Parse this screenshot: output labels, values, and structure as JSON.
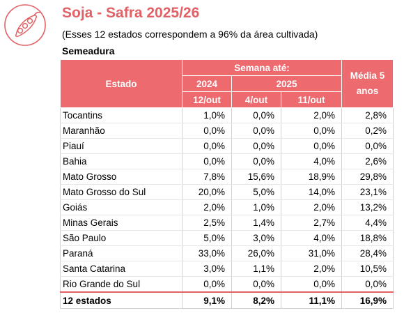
{
  "header": {
    "title": "Soja - Safra 2025/26",
    "subtitle": "(Esses 12 estados correspondem a 96% da área cultivada)",
    "section": "Semeadura",
    "accent_color": "#e06266",
    "logo_icon": "soybean-pod-icon"
  },
  "table": {
    "col_estado": "Estado",
    "col_semana": "Semana até:",
    "year_2024": "2024",
    "year_2025": "2025",
    "week_1": "12/out",
    "week_2": "4/out",
    "week_3": "11/out",
    "col_media_1": "Média 5",
    "col_media_2": "anos",
    "rows": [
      {
        "estado": "Tocantins",
        "v2024": "1,0%",
        "v4out": "0,0%",
        "v11out": "2,0%",
        "media": "2,8%"
      },
      {
        "estado": "Maranhão",
        "v2024": "0,0%",
        "v4out": "0,0%",
        "v11out": "0,0%",
        "media": "0,2%"
      },
      {
        "estado": "Piauí",
        "v2024": "0,0%",
        "v4out": "0,0%",
        "v11out": "0,0%",
        "media": "0,0%"
      },
      {
        "estado": "Bahia",
        "v2024": "0,0%",
        "v4out": "0,0%",
        "v11out": "4,0%",
        "media": "2,6%"
      },
      {
        "estado": "Mato Grosso",
        "v2024": "7,8%",
        "v4out": "15,6%",
        "v11out": "18,9%",
        "media": "29,8%"
      },
      {
        "estado": "Mato Grosso do Sul",
        "v2024": "20,0%",
        "v4out": "5,0%",
        "v11out": "14,0%",
        "media": "23,1%"
      },
      {
        "estado": "Goiás",
        "v2024": "2,0%",
        "v4out": "1,0%",
        "v11out": "2,0%",
        "media": "13,2%"
      },
      {
        "estado": "Minas Gerais",
        "v2024": "2,5%",
        "v4out": "1,4%",
        "v11out": "2,7%",
        "media": "4,4%"
      },
      {
        "estado": "São Paulo",
        "v2024": "5,0%",
        "v4out": "3,0%",
        "v11out": "4,0%",
        "media": "18,8%"
      },
      {
        "estado": "Paraná",
        "v2024": "33,0%",
        "v4out": "26,0%",
        "v11out": "31,0%",
        "media": "28,4%"
      },
      {
        "estado": "Santa Catarina",
        "v2024": "3,0%",
        "v4out": "1,1%",
        "v11out": "2,0%",
        "media": "10,5%"
      },
      {
        "estado": "Rio Grande do Sul",
        "v2024": "0,0%",
        "v4out": "0,0%",
        "v11out": "0,0%",
        "media": "0,0%"
      }
    ],
    "total": {
      "estado": "12 estados",
      "v2024": "9,1%",
      "v4out": "8,2%",
      "v11out": "11,1%",
      "media": "16,9%"
    }
  }
}
